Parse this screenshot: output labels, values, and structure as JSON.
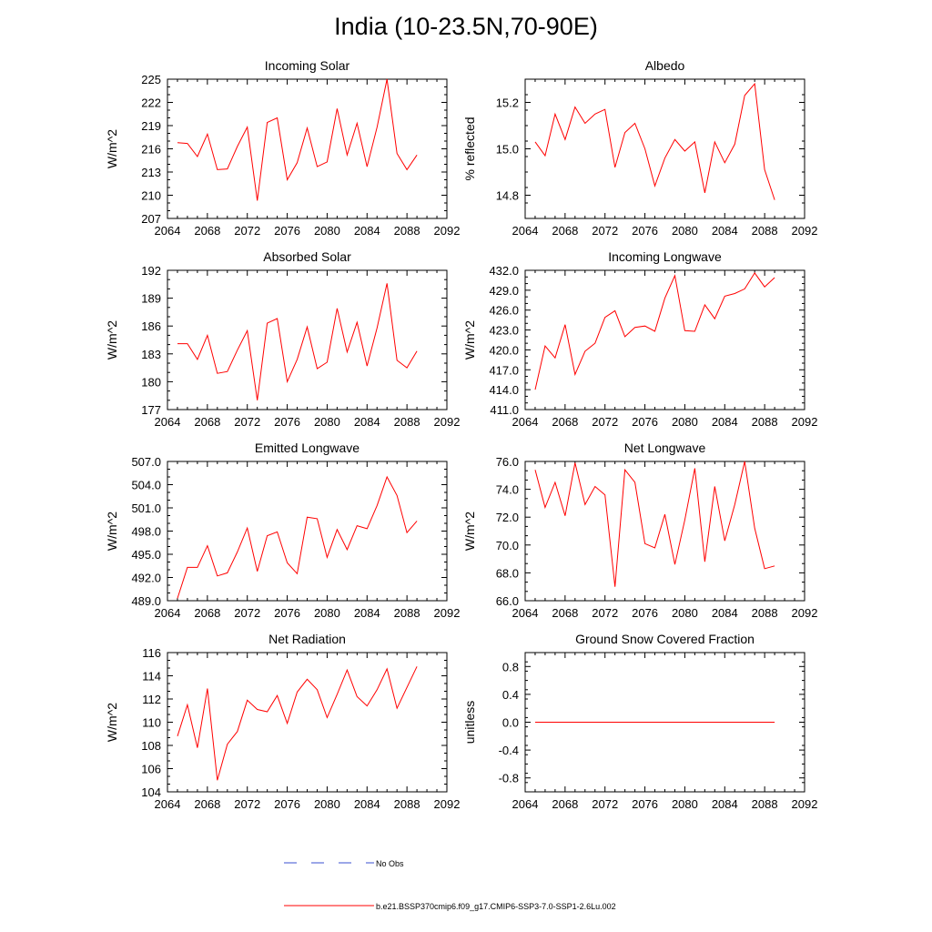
{
  "title": "India (10-23.5N,70-90E)",
  "colors": {
    "model_line": "#ff0000",
    "obs_line": "#3a4fd0",
    "axis": "#000000"
  },
  "legend": {
    "obs_label": "No Obs",
    "model_label": "b.e21.BSSP370cmip6.f09_g17.CMIP6-SSP3-7.0-SSP1-2.6Lu.002"
  },
  "chart_data": [
    {
      "type": "line",
      "title": "Incoming Solar",
      "ylabel": "W/m^2",
      "x": [
        2065,
        2066,
        2067,
        2068,
        2069,
        2070,
        2071,
        2072,
        2073,
        2074,
        2075,
        2076,
        2077,
        2078,
        2079,
        2080,
        2081,
        2082,
        2083,
        2084,
        2085,
        2086,
        2087,
        2088,
        2089
      ],
      "values": [
        216.8,
        216.7,
        215.0,
        217.9,
        213.3,
        213.4,
        216.3,
        218.8,
        209.3,
        219.4,
        220.0,
        212.0,
        214.2,
        218.7,
        213.7,
        214.3,
        221.2,
        215.2,
        219.3,
        213.7,
        218.8,
        225.0,
        215.4,
        213.3,
        215.2
      ],
      "xlim": [
        2064,
        2092
      ],
      "ylim": [
        207,
        225
      ],
      "xticks": [
        "2064",
        "2068",
        "2072",
        "2076",
        "2080",
        "2084",
        "2088",
        "2092"
      ],
      "yticks": [
        "207",
        "210",
        "213",
        "216",
        "219",
        "222",
        "225"
      ]
    },
    {
      "type": "line",
      "title": "Albedo",
      "ylabel": "% reflected",
      "x": [
        2065,
        2066,
        2067,
        2068,
        2069,
        2070,
        2071,
        2072,
        2073,
        2074,
        2075,
        2076,
        2077,
        2078,
        2079,
        2080,
        2081,
        2082,
        2083,
        2084,
        2085,
        2086,
        2087,
        2088,
        2089
      ],
      "values": [
        15.03,
        14.97,
        15.15,
        15.04,
        15.18,
        15.11,
        15.15,
        15.17,
        14.92,
        15.07,
        15.11,
        15.0,
        14.84,
        14.96,
        15.04,
        14.99,
        15.03,
        14.81,
        15.03,
        14.94,
        15.02,
        15.23,
        15.28,
        14.91,
        14.78
      ],
      "xlim": [
        2064,
        2092
      ],
      "ylim": [
        14.7,
        15.3
      ],
      "xticks": [
        "2064",
        "2068",
        "2072",
        "2076",
        "2080",
        "2084",
        "2088",
        "2092"
      ],
      "yticks": [
        "14.8",
        "15.0",
        "15.2"
      ]
    },
    {
      "type": "line",
      "title": "Absorbed Solar",
      "ylabel": "W/m^2",
      "x": [
        2065,
        2066,
        2067,
        2068,
        2069,
        2070,
        2071,
        2072,
        2073,
        2074,
        2075,
        2076,
        2077,
        2078,
        2079,
        2080,
        2081,
        2082,
        2083,
        2084,
        2085,
        2086,
        2087,
        2088,
        2089
      ],
      "values": [
        184.1,
        184.1,
        182.4,
        185.0,
        180.9,
        181.1,
        183.4,
        185.5,
        178.0,
        186.3,
        186.8,
        180.0,
        182.4,
        185.9,
        181.4,
        182.1,
        187.9,
        183.2,
        186.4,
        181.7,
        185.8,
        190.6,
        182.3,
        181.5,
        183.3
      ],
      "xlim": [
        2064,
        2092
      ],
      "ylim": [
        177,
        192
      ],
      "xticks": [
        "2064",
        "2068",
        "2072",
        "2076",
        "2080",
        "2084",
        "2088",
        "2092"
      ],
      "yticks": [
        "177",
        "180",
        "183",
        "186",
        "189",
        "192"
      ]
    },
    {
      "type": "line",
      "title": "Incoming Longwave",
      "ylabel": "W/m^2",
      "x": [
        2065,
        2066,
        2067,
        2068,
        2069,
        2070,
        2071,
        2072,
        2073,
        2074,
        2075,
        2076,
        2077,
        2078,
        2079,
        2080,
        2081,
        2082,
        2083,
        2084,
        2085,
        2086,
        2087,
        2088,
        2089
      ],
      "values": [
        414.0,
        420.6,
        418.8,
        423.8,
        416.3,
        419.8,
        421.0,
        424.9,
        425.9,
        422.0,
        423.4,
        423.6,
        422.8,
        427.8,
        431.2,
        422.9,
        422.8,
        426.8,
        424.7,
        428.1,
        428.5,
        429.2,
        431.6,
        429.5,
        430.9
      ],
      "xlim": [
        2064,
        2092
      ],
      "ylim": [
        411,
        432
      ],
      "xticks": [
        "2064",
        "2068",
        "2072",
        "2076",
        "2080",
        "2084",
        "2088",
        "2092"
      ],
      "yticks": [
        "411.0",
        "414.0",
        "417.0",
        "420.0",
        "423.0",
        "426.0",
        "429.0",
        "432.0"
      ]
    },
    {
      "type": "line",
      "title": "Emitted Longwave",
      "ylabel": "W/m^2",
      "x": [
        2065,
        2066,
        2067,
        2068,
        2069,
        2070,
        2071,
        2072,
        2073,
        2074,
        2075,
        2076,
        2077,
        2078,
        2079,
        2080,
        2081,
        2082,
        2083,
        2084,
        2085,
        2086,
        2087,
        2088,
        2089
      ],
      "values": [
        489.3,
        493.3,
        493.3,
        496.1,
        492.2,
        492.6,
        495.3,
        498.4,
        492.8,
        497.4,
        497.9,
        493.9,
        492.5,
        499.8,
        499.6,
        494.6,
        498.2,
        495.6,
        498.7,
        498.3,
        501.3,
        505.0,
        502.6,
        497.8,
        499.3
      ],
      "xlim": [
        2064,
        2092
      ],
      "ylim": [
        489,
        507
      ],
      "xticks": [
        "2064",
        "2068",
        "2072",
        "2076",
        "2080",
        "2084",
        "2088",
        "2092"
      ],
      "yticks": [
        "489.0",
        "492.0",
        "495.0",
        "498.0",
        "501.0",
        "504.0",
        "507.0"
      ]
    },
    {
      "type": "line",
      "title": "Net Longwave",
      "ylabel": "W/m^2",
      "x": [
        2065,
        2066,
        2067,
        2068,
        2069,
        2070,
        2071,
        2072,
        2073,
        2074,
        2075,
        2076,
        2077,
        2078,
        2079,
        2080,
        2081,
        2082,
        2083,
        2084,
        2085,
        2086,
        2087,
        2088,
        2089
      ],
      "values": [
        75.4,
        72.7,
        74.5,
        72.1,
        75.9,
        72.9,
        74.2,
        73.6,
        67.0,
        75.4,
        74.5,
        70.1,
        69.8,
        72.2,
        68.6,
        71.8,
        75.5,
        68.8,
        74.2,
        70.3,
        72.9,
        76.0,
        71.2,
        68.3,
        68.5
      ],
      "xlim": [
        2064,
        2092
      ],
      "ylim": [
        66,
        76
      ],
      "xticks": [
        "2064",
        "2068",
        "2072",
        "2076",
        "2080",
        "2084",
        "2088",
        "2092"
      ],
      "yticks": [
        "66.0",
        "68.0",
        "70.0",
        "72.0",
        "74.0",
        "76.0"
      ]
    },
    {
      "type": "line",
      "title": "Net Radiation",
      "ylabel": "W/m^2",
      "x": [
        2065,
        2066,
        2067,
        2068,
        2069,
        2070,
        2071,
        2072,
        2073,
        2074,
        2075,
        2076,
        2077,
        2078,
        2079,
        2080,
        2081,
        2082,
        2083,
        2084,
        2085,
        2086,
        2087,
        2088,
        2089
      ],
      "values": [
        108.8,
        111.5,
        107.8,
        112.9,
        105.0,
        108.1,
        109.2,
        111.9,
        111.1,
        110.9,
        112.3,
        109.9,
        112.6,
        113.7,
        112.8,
        110.4,
        112.4,
        114.5,
        112.2,
        111.4,
        112.8,
        114.6,
        111.2,
        113.0,
        114.8
      ],
      "xlim": [
        2064,
        2092
      ],
      "ylim": [
        104,
        116
      ],
      "xticks": [
        "2064",
        "2068",
        "2072",
        "2076",
        "2080",
        "2084",
        "2088",
        "2092"
      ],
      "yticks": [
        "104",
        "106",
        "108",
        "110",
        "112",
        "114",
        "116"
      ]
    },
    {
      "type": "line",
      "title": "Ground Snow Covered Fraction",
      "ylabel": "unitless",
      "x": [
        2065,
        2066,
        2067,
        2068,
        2069,
        2070,
        2071,
        2072,
        2073,
        2074,
        2075,
        2076,
        2077,
        2078,
        2079,
        2080,
        2081,
        2082,
        2083,
        2084,
        2085,
        2086,
        2087,
        2088,
        2089
      ],
      "values": [
        0,
        0,
        0,
        0,
        0,
        0,
        0,
        0,
        0,
        0,
        0,
        0,
        0,
        0,
        0,
        0,
        0,
        0,
        0,
        0,
        0,
        0,
        0,
        0,
        0
      ],
      "xlim": [
        2064,
        2092
      ],
      "ylim": [
        -1.0,
        1.0
      ],
      "xticks": [
        "2064",
        "2068",
        "2072",
        "2076",
        "2080",
        "2084",
        "2088",
        "2092"
      ],
      "yticks": [
        "-0.8",
        "-0.4",
        "0.0",
        "0.4",
        "0.8"
      ]
    }
  ]
}
